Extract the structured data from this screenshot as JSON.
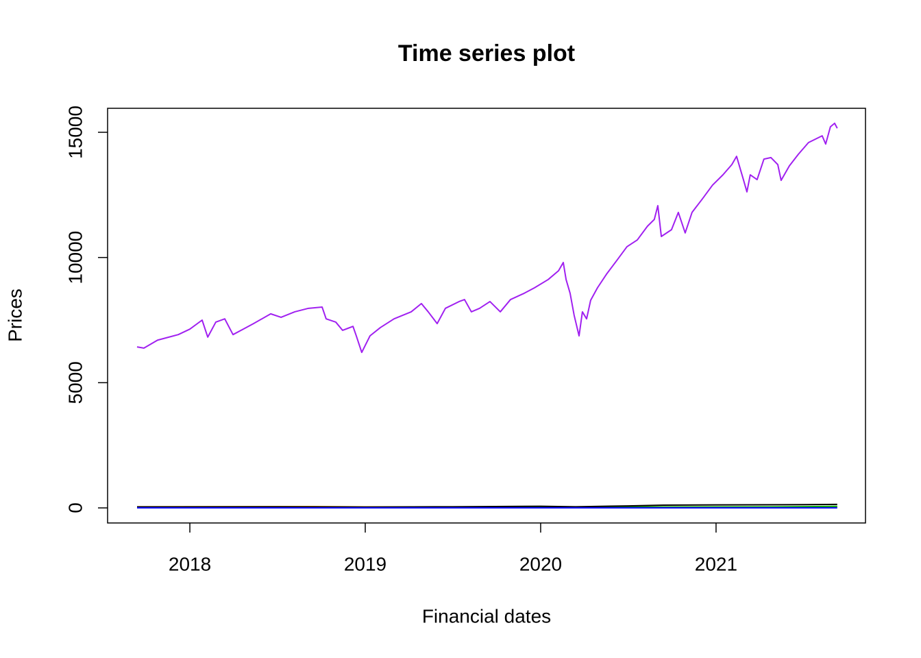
{
  "chart_data": {
    "type": "line",
    "title": "Time series plot",
    "x_label": "Financial dates",
    "y_label": "Prices",
    "xlim": [
      2017.531,
      2021.852
    ],
    "xticks": [
      2018,
      2019,
      2020,
      2021
    ],
    "ylim": [
      -602,
      15958
    ],
    "yticks": [
      0,
      5000,
      10000,
      15000
    ],
    "series": [
      {
        "color": "#a020f0",
        "x": [
          2017.699,
          2017.738,
          2017.816,
          2017.934,
          2018.0,
          2018.07,
          2018.102,
          2018.148,
          2018.199,
          2018.246,
          2018.305,
          2018.363,
          2018.461,
          2018.52,
          2018.598,
          2018.676,
          2018.754,
          2018.777,
          2018.832,
          2018.871,
          2018.93,
          2018.949,
          2018.98,
          2019.027,
          2019.086,
          2019.164,
          2019.262,
          2019.32,
          2019.359,
          2019.41,
          2019.457,
          2019.535,
          2019.566,
          2019.605,
          2019.652,
          2019.711,
          2019.77,
          2019.828,
          2019.906,
          2019.965,
          2020.043,
          2020.102,
          2020.129,
          2020.145,
          2020.168,
          2020.191,
          2020.219,
          2020.238,
          2020.262,
          2020.285,
          2020.324,
          2020.375,
          2020.434,
          2020.492,
          2020.551,
          2020.609,
          2020.648,
          2020.668,
          2020.688,
          2020.746,
          2020.785,
          2020.824,
          2020.863,
          2020.922,
          2020.98,
          2021.039,
          2021.09,
          2021.117,
          2021.156,
          2021.176,
          2021.195,
          2021.234,
          2021.273,
          2021.313,
          2021.352,
          2021.371,
          2021.418,
          2021.469,
          2021.527,
          2021.605,
          2021.625,
          2021.652,
          2021.676,
          2021.691
        ],
        "values": [
          6430,
          6380,
          6700,
          6920,
          7140,
          7500,
          6820,
          7420,
          7550,
          6920,
          7140,
          7360,
          7750,
          7610,
          7830,
          7970,
          8020,
          7550,
          7420,
          7090,
          7250,
          6870,
          6210,
          6870,
          7200,
          7550,
          7830,
          8160,
          7830,
          7360,
          7970,
          8240,
          8320,
          7830,
          7970,
          8240,
          7830,
          8320,
          8570,
          8790,
          9120,
          9470,
          9800,
          9120,
          8570,
          7690,
          6870,
          7830,
          7550,
          8290,
          8790,
          9330,
          9880,
          10430,
          10700,
          11250,
          11520,
          12070,
          10840,
          11110,
          11800,
          10980,
          11800,
          12340,
          12890,
          13300,
          13710,
          14040,
          13110,
          12620,
          13300,
          13110,
          13930,
          13990,
          13710,
          13080,
          13660,
          14120,
          14590,
          14860,
          14530,
          15220,
          15360,
          15160
        ]
      },
      {
        "color": "#ffa500",
        "x": [
          2017.699,
          2018.7,
          2019.0,
          2021.691
        ],
        "values": [
          45,
          55,
          40,
          30
        ]
      },
      {
        "color": "#00b000",
        "x": [
          2017.699,
          2020.0,
          2021.3,
          2021.691
        ],
        "values": [
          20,
          30,
          40,
          60
        ]
      },
      {
        "color": "#000000",
        "x": [
          2017.699,
          2018.5,
          2019.0,
          2019.5,
          2020.0,
          2020.2,
          2020.5,
          2020.7,
          2021.0,
          2021.5,
          2021.691
        ],
        "values": [
          40,
          45,
          35,
          45,
          65,
          45,
          80,
          110,
          120,
          130,
          140
        ]
      },
      {
        "color": "#0000ff",
        "x": [
          2017.699,
          2021.691
        ],
        "values": [
          2,
          3
        ]
      }
    ]
  }
}
